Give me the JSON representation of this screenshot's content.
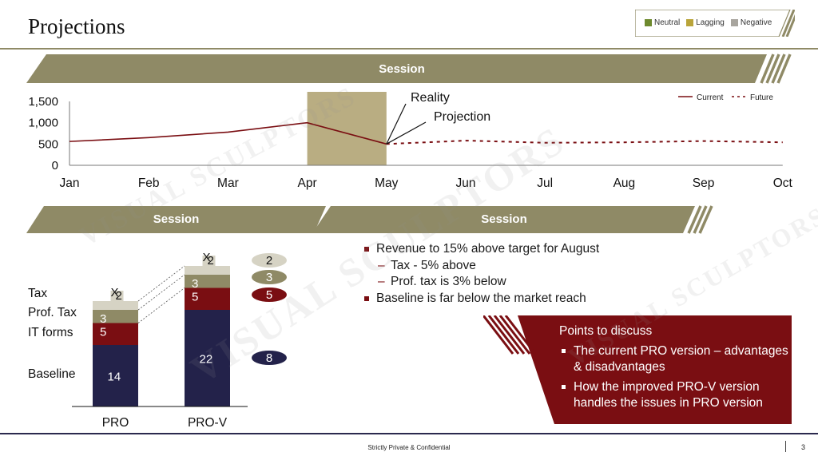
{
  "page": {
    "title": "Projections",
    "footer": "Strictly Private & Confidential",
    "page_number": "3"
  },
  "status_legend": {
    "items": [
      {
        "label": "Neutral",
        "color": "#6e8a2e"
      },
      {
        "label": "Lagging",
        "color": "#b9a43a"
      },
      {
        "label": "Negative",
        "color": "#a8a59e"
      }
    ]
  },
  "banners": {
    "top": "Session",
    "left": "Session",
    "right": "Session"
  },
  "colors": {
    "banner": "#8f8a66",
    "dark_red": "#7a0e12",
    "navy": "#23224a",
    "highlight": "#b9ad82"
  },
  "watermark": {
    "text": "VISUAL SCULPTORS"
  },
  "chart_data": [
    {
      "type": "line",
      "x": [
        "Jan",
        "Feb",
        "Mar",
        "Apr",
        "May",
        "Jun",
        "Jul",
        "Aug",
        "Sep",
        "Oct"
      ],
      "series": [
        {
          "name": "Current",
          "style": "solid",
          "color": "#7a0e12",
          "x": [
            "Jan",
            "Feb",
            "Mar",
            "Apr",
            "May"
          ],
          "values": [
            560,
            650,
            780,
            1000,
            500
          ]
        },
        {
          "name": "Future",
          "style": "dashed",
          "color": "#7a0e12",
          "x": [
            "May",
            "Jun",
            "Jul",
            "Aug",
            "Sep",
            "Oct"
          ],
          "values": [
            500,
            580,
            530,
            540,
            570,
            540
          ]
        }
      ],
      "yticks": [
        "0",
        "500",
        "1,000",
        "1,500"
      ],
      "ylim": [
        0,
        1500
      ],
      "highlight": {
        "from": "Apr",
        "to": "May",
        "color": "#b9ad82"
      },
      "annotations": [
        "Reality",
        "Projection"
      ],
      "legend_position": "top-right",
      "grid": false
    },
    {
      "type": "bar",
      "stacked": true,
      "categories": [
        "PRO",
        "PRO-V"
      ],
      "series": [
        {
          "name": "Baseline",
          "color": "#23224a",
          "values": [
            14,
            22
          ]
        },
        {
          "name": "IT forms",
          "color": "#7a0e12",
          "values": [
            5,
            5
          ]
        },
        {
          "name": "Prof. Tax",
          "color": "#8f8a66",
          "values": [
            3,
            3
          ]
        },
        {
          "name": "Tax",
          "color": "#d6d3c4",
          "values": [
            2,
            2
          ]
        }
      ],
      "top_labels": [
        "X",
        "X"
      ],
      "differences": [
        {
          "value": "2",
          "color": "#d6d3c4"
        },
        {
          "value": "3",
          "color": "#8f8a66"
        },
        {
          "value": "5",
          "color": "#7a0e12"
        },
        {
          "value": "8",
          "color": "#23224a"
        }
      ]
    }
  ],
  "bullets": [
    {
      "level": 1,
      "text": "Revenue to 15% above target for August"
    },
    {
      "level": 2,
      "text": "Tax - 5% above"
    },
    {
      "level": 2,
      "text": "Prof. tax is 3% below"
    },
    {
      "level": 1,
      "text": "Baseline is far below the market reach"
    }
  ],
  "discussion": {
    "heading": "Points to discuss",
    "items": [
      "The current PRO version – advantages & disadvantages",
      "How the improved PRO-V version handles the issues in PRO version"
    ]
  }
}
